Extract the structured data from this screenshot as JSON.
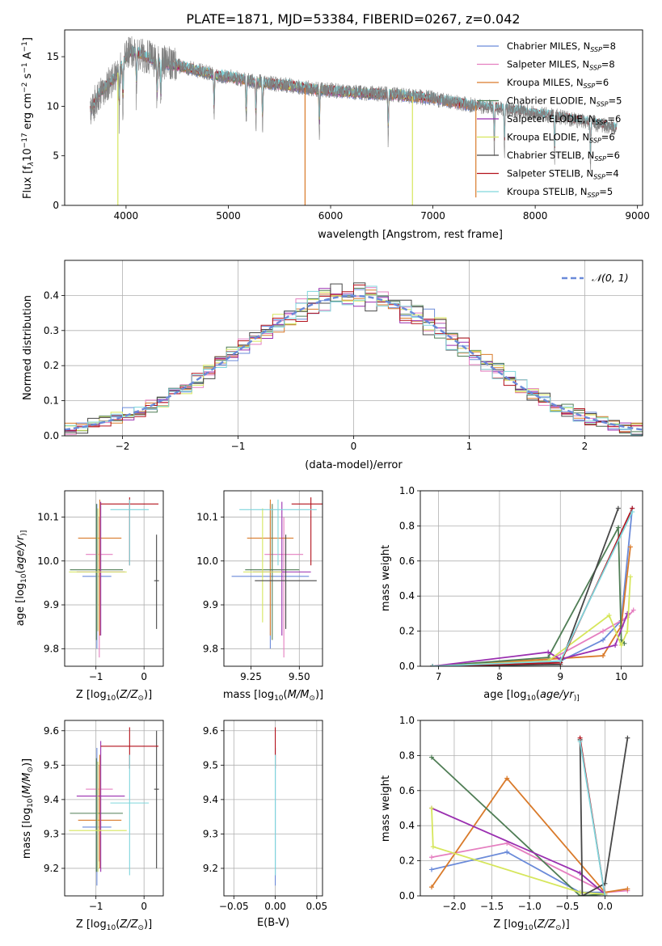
{
  "figure": {
    "title": "PLATE=1871, MJD=53384, FIBERID=0267, z=0.042"
  },
  "series_colors": {
    "Chabrier MILES": "#6a8ad9",
    "Salpeter MILES": "#e57fc0",
    "Kroupa MILES": "#d97a2a",
    "Chabrier ELODIE": "#4f7d55",
    "Salpeter ELODIE": "#9a2fb0",
    "Kroupa ELODIE": "#d6e65c",
    "Chabrier STELIB": "#474747",
    "Salpeter STELIB": "#b3121c",
    "Kroupa STELIB": "#7fd6dc"
  },
  "chart_data": [
    {
      "id": "spectrum",
      "type": "line",
      "xlabel": "wavelength [Angstrom, rest frame]",
      "ylabel": "Flux [f",
      "ylabel_parts": [
        "Flux [f",
        "λ",
        "10",
        "−17",
        " erg cm",
        "−2",
        " s",
        "−1",
        " A",
        "−1",
        "]"
      ],
      "xlim": [
        3400,
        9050
      ],
      "ylim": [
        0,
        17.7
      ],
      "xticks": [
        4000,
        5000,
        6000,
        7000,
        8000,
        9000
      ],
      "yticks": [
        0,
        5,
        10,
        15
      ],
      "grid": false,
      "legend": {
        "placement": "top-right",
        "entries": [
          {
            "name": "Chabrier MILES",
            "nssp": "8"
          },
          {
            "name": "Salpeter MILES",
            "nssp": "8"
          },
          {
            "name": "Kroupa MILES",
            "nssp": "6"
          },
          {
            "name": "Chabrier ELODIE",
            "nssp": "5"
          },
          {
            "name": "Salpeter ELODIE",
            "nssp": "6"
          },
          {
            "name": "Kroupa ELODIE",
            "nssp": "6"
          },
          {
            "name": "Chabrier STELIB",
            "nssp": "6"
          },
          {
            "name": "Salpeter STELIB",
            "nssp": "4"
          },
          {
            "name": "Kroupa STELIB",
            "nssp": "5"
          }
        ]
      },
      "data_continuum": {
        "x": [
          3650,
          3700,
          3750,
          3800,
          3850,
          3900,
          3950,
          4000,
          4050,
          4100,
          4200,
          4300,
          4400,
          4500,
          4600,
          4700,
          4800,
          4900,
          5000,
          5200,
          5400,
          5600,
          5800,
          6000,
          6200,
          6400,
          6600,
          6800,
          7000,
          7200,
          7400,
          7600,
          7800,
          8000,
          8200,
          8400,
          8600,
          8800
        ],
        "y": [
          9.5,
          10.5,
          11.5,
          12,
          12.5,
          13,
          14,
          15,
          15.5,
          15.5,
          15,
          14.5,
          14.3,
          14.1,
          13.9,
          13.6,
          13.4,
          13.1,
          13,
          12.6,
          12.3,
          12.1,
          11.8,
          11.6,
          11.4,
          11.3,
          11.2,
          11,
          10.8,
          10.4,
          10.1,
          9.9,
          9.6,
          9.3,
          9,
          8.6,
          8.2,
          7.8
        ]
      },
      "absorption_features": [
        3934,
        3969,
        4102,
        4304,
        4340,
        4861,
        5175,
        5270,
        5335,
        5890,
        6563,
        7600,
        7700,
        8190,
        8540
      ],
      "model_spikes": [
        {
          "x": 3920,
          "y": 0,
          "series": "Kroupa ELODIE"
        },
        {
          "x": 5750,
          "y": 0,
          "series": "Kroupa MILES"
        },
        {
          "x": 6800,
          "y": 0,
          "series": "Kroupa ELODIE"
        },
        {
          "x": 7420,
          "y": 0.8,
          "series": "Kroupa MILES"
        }
      ]
    },
    {
      "id": "residuals",
      "type": "histogram",
      "xlabel": "(data-model)/error",
      "ylabel": "Normed distribution",
      "xlim": [
        -2.5,
        2.5
      ],
      "ylim": [
        0,
        0.5
      ],
      "xticks": [
        -2,
        -1,
        0,
        1,
        2
      ],
      "yticks": [
        0.0,
        0.1,
        0.2,
        0.3,
        0.4
      ],
      "grid": true,
      "bin_edges": [
        -2.5,
        2.5
      ],
      "bin_count": 50,
      "reference_curve": {
        "name": "𝒩(0, 1)",
        "mean": 0,
        "sigma": 1,
        "color": "#6a8ad9",
        "style": "dashed"
      },
      "legend": {
        "placement": "top-right"
      }
    },
    {
      "id": "age-vs-Z",
      "type": "errorbar",
      "xlabel": "Z [log",
      "xlabel_parts": [
        "Z [log",
        "10",
        "(",
        "Z/Z",
        "⊙",
        ")]"
      ],
      "ylabel_parts": [
        "age  [log",
        "10",
        "(",
        "age/yr",
        ")]"
      ],
      "xlim": [
        -1.65,
        0.4
      ],
      "ylim": [
        9.76,
        10.16
      ],
      "xticks": [
        -1,
        0
      ],
      "yticks": [
        9.8,
        9.9,
        10.0,
        10.1
      ],
      "grid": true,
      "points": [
        {
          "series": "Chabrier MILES",
          "x": -0.98,
          "xerr": 0.3,
          "y": 9.965,
          "ylo": 9.8,
          "yhi": 10.13
        },
        {
          "series": "Salpeter MILES",
          "x": -0.93,
          "xerr": 0.28,
          "y": 10.015,
          "ylo": 9.78,
          "yhi": 10.1
        },
        {
          "series": "Kroupa MILES",
          "x": -0.92,
          "xerr": 0.45,
          "y": 10.052,
          "ylo": 9.83,
          "yhi": 10.14
        },
        {
          "series": "Chabrier ELODIE",
          "x": -0.99,
          "xerr": 0.55,
          "y": 9.98,
          "ylo": 9.82,
          "yhi": 10.13
        },
        {
          "series": "Salpeter ELODIE",
          "x": -0.9,
          "xerr": 0.5,
          "y": 9.975,
          "ylo": 9.83,
          "yhi": 10.135
        },
        {
          "series": "Kroupa ELODIE",
          "x": -0.96,
          "xerr": 0.6,
          "y": 9.975,
          "ylo": 9.84,
          "yhi": 10.12
        },
        {
          "series": "Chabrier STELIB",
          "x": 0.26,
          "xerr": 0.05,
          "y": 9.955,
          "ylo": 9.845,
          "yhi": 10.06
        },
        {
          "series": "Salpeter STELIB",
          "x": -0.3,
          "xerr": 0.6,
          "y": 10.13,
          "ylo": 9.99,
          "yhi": 10.145
        },
        {
          "series": "Kroupa STELIB",
          "x": -0.3,
          "xerr": 0.4,
          "y": 10.117,
          "ylo": 9.99,
          "yhi": 10.14
        }
      ]
    },
    {
      "id": "age-vs-mass",
      "type": "errorbar",
      "xlabel_parts": [
        "mass [log",
        "10",
        "(",
        "M/M",
        "⊙",
        ")]"
      ],
      "xlim": [
        9.11,
        9.62
      ],
      "ylim": [
        9.76,
        10.16
      ],
      "xticks": [
        9.25,
        9.5
      ],
      "xticklabels": [
        "9.25",
        "9.50"
      ],
      "yticks": [
        9.8,
        9.9,
        10.0,
        10.1
      ],
      "grid": true,
      "points": [
        {
          "series": "Chabrier MILES",
          "x": 9.35,
          "xerr": 0.2,
          "y": 9.965,
          "ylo": 9.8,
          "yhi": 10.13
        },
        {
          "series": "Salpeter MILES",
          "x": 9.42,
          "xerr": 0.1,
          "y": 10.015,
          "ylo": 9.78,
          "yhi": 10.1
        },
        {
          "series": "Kroupa MILES",
          "x": 9.35,
          "xerr": 0.12,
          "y": 10.052,
          "ylo": 9.83,
          "yhi": 10.14
        },
        {
          "series": "Chabrier ELODIE",
          "x": 9.36,
          "xerr": 0.14,
          "y": 9.98,
          "ylo": 9.82,
          "yhi": 10.13
        },
        {
          "series": "Salpeter ELODIE",
          "x": 9.41,
          "xerr": 0.15,
          "y": 9.975,
          "ylo": 9.83,
          "yhi": 10.135
        },
        {
          "series": "Kroupa ELODIE",
          "x": 9.31,
          "xerr": 0.1,
          "y": 9.975,
          "ylo": 9.86,
          "yhi": 10.12
        },
        {
          "series": "Chabrier STELIB",
          "x": 9.43,
          "xerr": 0.16,
          "y": 9.955,
          "ylo": 9.845,
          "yhi": 10.06
        },
        {
          "series": "Salpeter STELIB",
          "x": 9.56,
          "xerr": 0.1,
          "y": 10.13,
          "ylo": 9.99,
          "yhi": 10.145
        },
        {
          "series": "Kroupa STELIB",
          "x": 9.39,
          "xerr": 0.2,
          "y": 10.117,
          "ylo": 9.99,
          "yhi": 10.14
        }
      ]
    },
    {
      "id": "weight-vs-age",
      "type": "line",
      "xlabel_parts": [
        "age  [log",
        "10",
        "(",
        "age/yr",
        ")]"
      ],
      "ylabel": "mass weight",
      "xlim": [
        6.7,
        10.35
      ],
      "ylim": [
        0,
        1
      ],
      "xticks": [
        7,
        8,
        9,
        10
      ],
      "yticks": [
        0,
        0.2,
        0.4,
        0.6,
        0.8,
        1.0
      ],
      "yticklabels": [
        "0.0",
        "0.2",
        "0.4",
        "0.6",
        "0.8",
        "1.0"
      ],
      "grid": true,
      "series": [
        {
          "name": "Chabrier MILES",
          "x": [
            6.9,
            8.7,
            9.0,
            9.7,
            10.0,
            10.18
          ],
          "y": [
            0.0,
            0.02,
            0.03,
            0.15,
            0.26,
            0.9
          ]
        },
        {
          "name": "Salpeter MILES",
          "x": [
            6.9,
            8.8,
            9.7,
            10.1,
            10.2
          ],
          "y": [
            0.0,
            0.03,
            0.2,
            0.28,
            0.32
          ]
        },
        {
          "name": "Kroupa MILES",
          "x": [
            6.9,
            8.8,
            9.7,
            10.0,
            10.15
          ],
          "y": [
            0.0,
            0.04,
            0.06,
            0.23,
            0.68
          ]
        },
        {
          "name": "Chabrier ELODIE",
          "x": [
            6.9,
            8.8,
            9.95,
            10.0,
            10.05
          ],
          "y": [
            0.0,
            0.05,
            0.79,
            0.15,
            0.13
          ]
        },
        {
          "name": "Salpeter ELODIE",
          "x": [
            6.9,
            8.8,
            9.0,
            9.9,
            10.1
          ],
          "y": [
            0.0,
            0.08,
            0.04,
            0.12,
            0.3
          ]
        },
        {
          "name": "Kroupa ELODIE",
          "x": [
            6.9,
            8.8,
            9.8,
            10.0,
            10.1,
            10.15
          ],
          "y": [
            0.0,
            0.03,
            0.29,
            0.12,
            0.2,
            0.51
          ]
        },
        {
          "name": "Chabrier STELIB",
          "x": [
            6.9,
            9.0,
            9.95
          ],
          "y": [
            0.0,
            0.01,
            0.9
          ]
        },
        {
          "name": "Salpeter STELIB",
          "x": [
            6.9,
            9.0,
            10.18
          ],
          "y": [
            0.0,
            0.02,
            0.9
          ]
        },
        {
          "name": "Kroupa STELIB",
          "x": [
            6.9,
            9.0,
            10.18
          ],
          "y": [
            0.0,
            0.03,
            0.88
          ]
        }
      ]
    },
    {
      "id": "mass-vs-Z",
      "type": "errorbar",
      "xlabel_parts": [
        "Z [log",
        "10",
        "(",
        "Z/Z",
        "⊙",
        ")]"
      ],
      "ylabel_parts": [
        "mass [log",
        "10",
        "(",
        "M/M",
        "⊙",
        ")]"
      ],
      "xlim": [
        -1.65,
        0.4
      ],
      "ylim": [
        9.12,
        9.63
      ],
      "xticks": [
        -1,
        0
      ],
      "yticks": [
        9.2,
        9.3,
        9.4,
        9.5,
        9.6
      ],
      "grid": true,
      "points": [
        {
          "series": "Chabrier MILES",
          "x": -0.98,
          "xerr": 0.3,
          "y": 9.32,
          "ylo": 9.15,
          "yhi": 9.55
        },
        {
          "series": "Salpeter MILES",
          "x": -0.93,
          "xerr": 0.28,
          "y": 9.43,
          "ylo": 9.22,
          "yhi": 9.5
        },
        {
          "series": "Kroupa MILES",
          "x": -0.92,
          "xerr": 0.45,
          "y": 9.34,
          "ylo": 9.2,
          "yhi": 9.53
        },
        {
          "series": "Chabrier ELODIE",
          "x": -0.99,
          "xerr": 0.55,
          "y": 9.36,
          "ylo": 9.19,
          "yhi": 9.52
        },
        {
          "series": "Salpeter ELODIE",
          "x": -0.9,
          "xerr": 0.5,
          "y": 9.41,
          "ylo": 9.19,
          "yhi": 9.57
        },
        {
          "series": "Kroupa ELODIE",
          "x": -0.96,
          "xerr": 0.6,
          "y": 9.31,
          "ylo": 9.19,
          "yhi": 9.51
        },
        {
          "series": "Chabrier STELIB",
          "x": 0.26,
          "xerr": 0.05,
          "y": 9.43,
          "ylo": 9.2,
          "yhi": 9.6
        },
        {
          "series": "Salpeter STELIB",
          "x": -0.3,
          "xerr": 0.6,
          "y": 9.555,
          "ylo": 9.49,
          "yhi": 9.61
        },
        {
          "series": "Kroupa STELIB",
          "x": -0.3,
          "xerr": 0.4,
          "y": 9.39,
          "ylo": 9.18,
          "yhi": 9.53
        }
      ]
    },
    {
      "id": "mass-vs-EBV",
      "type": "errorbar",
      "xlabel": "E(B-V)",
      "xlim": [
        -0.062,
        0.057
      ],
      "ylim": [
        9.12,
        9.63
      ],
      "xticks": [
        -0.05,
        0.0,
        0.05
      ],
      "xticklabels": [
        "−0.05",
        "0.00",
        "0.05"
      ],
      "yticks": [
        9.2,
        9.3,
        9.4,
        9.5,
        9.6
      ],
      "grid": true,
      "points": [
        {
          "series": "Chabrier MILES",
          "x": 0.0,
          "y": 9.32,
          "ylo": 9.15,
          "yhi": 9.55
        },
        {
          "series": "Salpeter STELIB",
          "x": 0.0,
          "y": 9.555,
          "ylo": 9.49,
          "yhi": 9.61
        },
        {
          "series": "Kroupa STELIB",
          "x": 0.0,
          "y": 9.39,
          "ylo": 9.18,
          "yhi": 9.53
        }
      ]
    },
    {
      "id": "weight-vs-Z",
      "type": "line",
      "xlabel_parts": [
        "Z [log",
        "10",
        "(",
        "Z/Z",
        "⊙",
        ")]"
      ],
      "ylabel": "mass weight",
      "xlim": [
        -2.45,
        0.5
      ],
      "ylim": [
        0,
        1
      ],
      "xticks": [
        -2.0,
        -1.5,
        -1.0,
        -0.5,
        0.0
      ],
      "xticklabels": [
        "−2.0",
        "−1.5",
        "−1.0",
        "−0.5",
        "0.0"
      ],
      "yticks": [
        0,
        0.2,
        0.4,
        0.6,
        0.8,
        1.0
      ],
      "yticklabels": [
        "0.0",
        "0.2",
        "0.4",
        "0.6",
        "0.8",
        "1.0"
      ],
      "grid": true,
      "series": [
        {
          "name": "Chabrier MILES",
          "x": [
            -2.3,
            -1.3,
            -0.33,
            0.0
          ],
          "y": [
            0.15,
            0.25,
            0.02,
            0.02
          ]
        },
        {
          "name": "Salpeter MILES",
          "x": [
            -2.3,
            -1.3,
            0.0,
            0.3
          ],
          "y": [
            0.22,
            0.3,
            0.02,
            0.03
          ]
        },
        {
          "name": "Kroupa MILES",
          "x": [
            -2.3,
            -1.3,
            0.0,
            0.3
          ],
          "y": [
            0.05,
            0.67,
            0.02,
            0.04
          ]
        },
        {
          "name": "Chabrier ELODIE",
          "x": [
            -2.3,
            -0.33,
            0.0
          ],
          "y": [
            0.79,
            0.0,
            0.01
          ]
        },
        {
          "name": "Salpeter ELODIE",
          "x": [
            -2.3,
            -0.33,
            0.0
          ],
          "y": [
            0.5,
            0.13,
            0.01
          ]
        },
        {
          "name": "Kroupa ELODIE",
          "x": [
            -2.3,
            -2.28,
            -0.33,
            0.0
          ],
          "y": [
            0.5,
            0.28,
            0.02,
            0.01
          ]
        },
        {
          "name": "Chabrier STELIB",
          "x": [
            -0.33,
            -0.3,
            0.0,
            0.3
          ],
          "y": [
            0.89,
            0.0,
            0.07,
            0.9
          ]
        },
        {
          "name": "Salpeter STELIB",
          "x": [
            -0.33,
            0.0
          ],
          "y": [
            0.9,
            0.0
          ]
        },
        {
          "name": "Kroupa STELIB",
          "x": [
            -0.33,
            0.0
          ],
          "y": [
            0.88,
            0.0
          ]
        }
      ]
    }
  ]
}
